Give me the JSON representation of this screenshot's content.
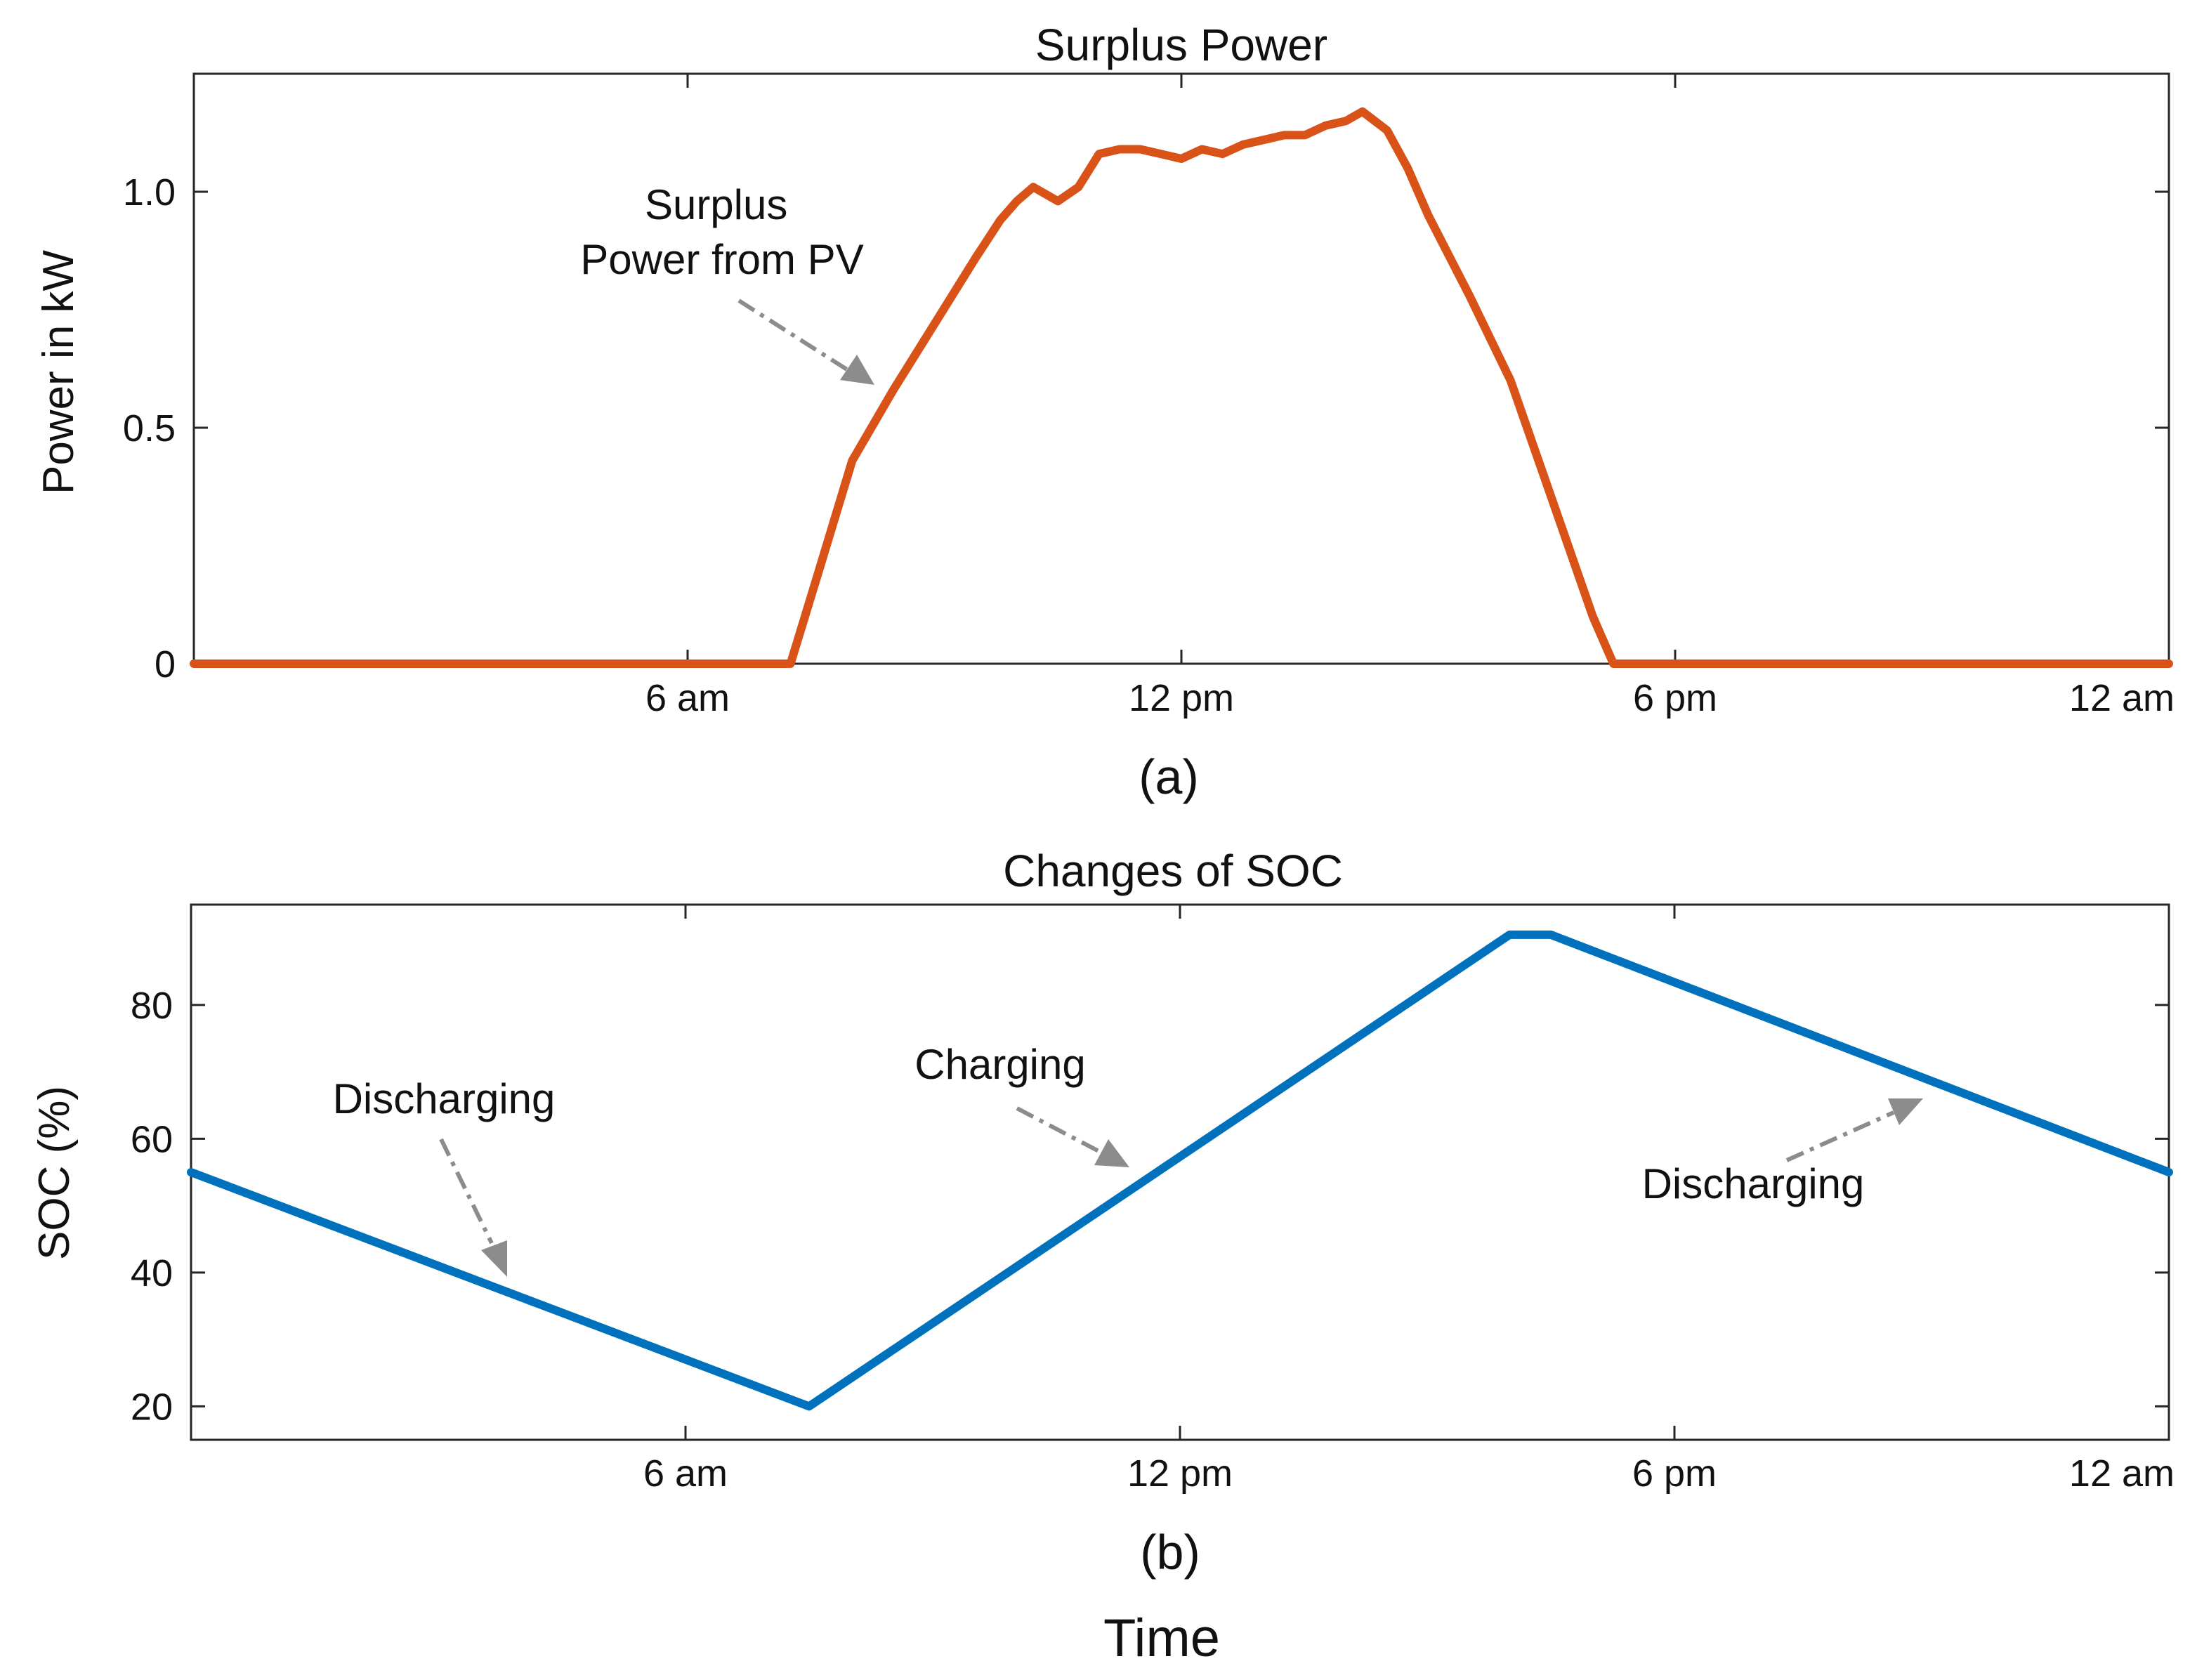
{
  "figure": {
    "xlabel": "Time"
  },
  "chart_data": [
    {
      "type": "line",
      "title": "Surplus Power",
      "caption": "(a)",
      "xlabel": "",
      "ylabel": "Power in kW",
      "xlim": [
        0,
        24
      ],
      "ylim": [
        0,
        1.25
      ],
      "xticks": [
        6,
        12,
        18,
        24
      ],
      "xtick_labels": [
        "6 am",
        "12 pm",
        "6 pm",
        "12 am"
      ],
      "yticks": [
        0,
        0.5,
        1.0
      ],
      "ytick_labels": [
        "0",
        "0.5",
        "1.0"
      ],
      "grid": false,
      "color": "#d95319",
      "series": [
        {
          "x": [
            0,
            7.25,
            7.6,
            8.0,
            8.5,
            9.0,
            9.5,
            9.8,
            10.0,
            10.2,
            10.5,
            10.75,
            11.0,
            11.25,
            11.5,
            11.75,
            12.0,
            12.25,
            12.5,
            12.75,
            13.0,
            13.25,
            13.5,
            13.75,
            14.0,
            14.2,
            14.5,
            14.75,
            15.0,
            15.5,
            16.0,
            16.5,
            17.0,
            17.25,
            17.5,
            20,
            24
          ],
          "y": [
            0,
            0,
            0.2,
            0.43,
            0.58,
            0.72,
            0.86,
            0.94,
            0.98,
            1.01,
            0.98,
            1.01,
            1.08,
            1.09,
            1.09,
            1.08,
            1.07,
            1.09,
            1.08,
            1.1,
            1.11,
            1.12,
            1.12,
            1.14,
            1.15,
            1.17,
            1.13,
            1.05,
            0.95,
            0.78,
            0.6,
            0.35,
            0.1,
            0,
            0,
            0,
            0
          ]
        }
      ],
      "annotations": [
        {
          "text": "Surplus\nPower from PV"
        }
      ]
    },
    {
      "type": "line",
      "title": "Changes of SOC",
      "caption": "(b)",
      "xlabel": "Time",
      "ylabel": "SOC (%)",
      "xlim": [
        0,
        24
      ],
      "ylim": [
        15,
        95
      ],
      "xticks": [
        6,
        12,
        18,
        24
      ],
      "xtick_labels": [
        "6 am",
        "12 pm",
        "6 pm",
        "12 am"
      ],
      "yticks": [
        20,
        40,
        60,
        80
      ],
      "ytick_labels": [
        "20",
        "40",
        "60",
        "80"
      ],
      "grid": false,
      "color": "#0072bd",
      "series": [
        {
          "x": [
            0,
            7.5,
            16.0,
            16.5,
            24
          ],
          "y": [
            55,
            20,
            90.5,
            90.5,
            55
          ]
        }
      ],
      "annotations": [
        {
          "text": "Discharging"
        },
        {
          "text": "Charging"
        },
        {
          "text": "Discharging"
        }
      ]
    }
  ]
}
